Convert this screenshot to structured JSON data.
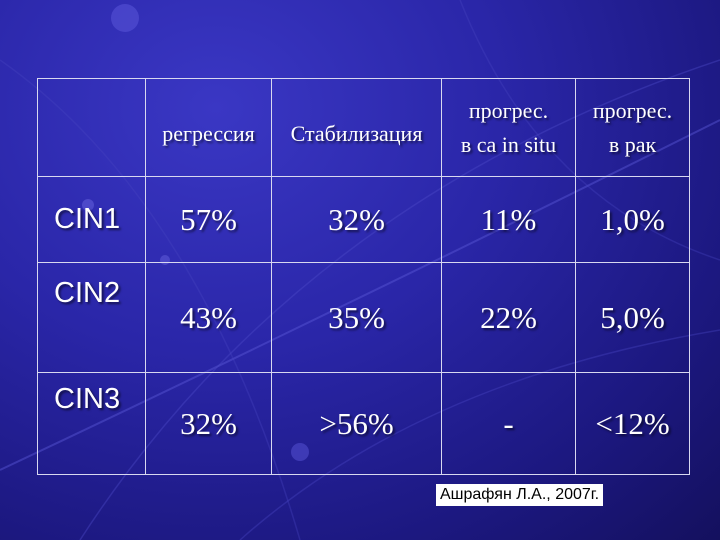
{
  "table": {
    "headers": [
      {
        "line1": "",
        "line2": ""
      },
      {
        "line1": "регрессия",
        "line2": ""
      },
      {
        "line1": "Стабилизация",
        "line2": ""
      },
      {
        "line1": "прогрес.",
        "line2": "в ca in situ"
      },
      {
        "line1": "прогрес.",
        "line2": "в рак"
      }
    ],
    "rows": [
      {
        "label": "CIN1",
        "values": [
          "57%",
          "32%",
          "11%",
          "1,0%"
        ]
      },
      {
        "label": "CIN2",
        "values": [
          "43%",
          "35%",
          "22%",
          "5,0%"
        ]
      },
      {
        "label": "CIN3",
        "values": [
          "32%",
          ">56%",
          "-",
          "<12%"
        ]
      }
    ]
  },
  "credit": "Ашрафян Л.А., 2007г."
}
